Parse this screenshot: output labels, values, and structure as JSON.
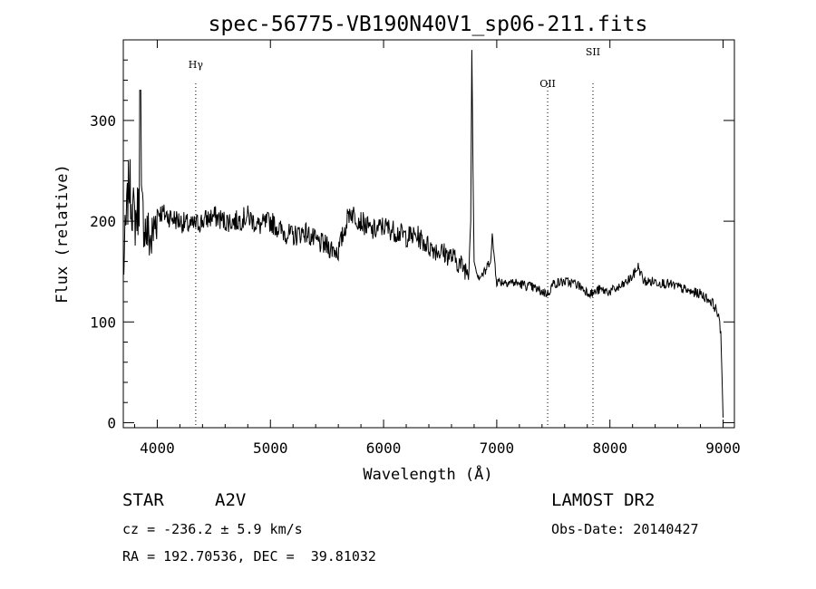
{
  "chart_data": {
    "type": "line",
    "title": "spec-56775-VB190N40V1_sp06-211.fits",
    "xlabel": "Wavelength (Å)",
    "ylabel": "Flux (relative)",
    "xlim": [
      3700,
      9100
    ],
    "ylim": [
      -5,
      380
    ],
    "xticks": [
      4000,
      5000,
      6000,
      7000,
      8000,
      9000
    ],
    "yticks": [
      0,
      100,
      200,
      300
    ],
    "grid": false,
    "line_color": "#000000",
    "reference_lines": [
      {
        "label": "Hγ",
        "x": 4340
      },
      {
        "label": "OII",
        "x": 7450
      },
      {
        "label": "SII",
        "x": 7850
      }
    ],
    "series": [
      {
        "x": [
          3700,
          3750,
          3800,
          3850,
          3900,
          3950,
          4000,
          4100,
          4200,
          4300,
          4400,
          4500,
          4600,
          4700,
          4800,
          4900,
          5000,
          5100,
          5200,
          5300,
          5400,
          5500,
          5600,
          5700,
          5800,
          5900,
          6000,
          6100,
          6200,
          6300,
          6400,
          6500,
          6600,
          6700,
          6750,
          6770,
          6780,
          6790,
          6800,
          6820,
          6850,
          6900,
          6950,
          6960,
          7000,
          7100,
          7200,
          7300,
          7400,
          7450,
          7500,
          7600,
          7700,
          7800,
          7850,
          7900,
          8000,
          8100,
          8200,
          8250,
          8300,
          8400,
          8500,
          8600,
          8700,
          8800,
          8900,
          8950,
          8980,
          9000
        ],
        "y": [
          150,
          240,
          200,
          220,
          190,
          180,
          210,
          205,
          200,
          195,
          200,
          205,
          200,
          200,
          205,
          195,
          200,
          190,
          185,
          190,
          180,
          175,
          170,
          210,
          200,
          190,
          195,
          190,
          185,
          185,
          175,
          170,
          165,
          155,
          150,
          200,
          370,
          250,
          160,
          150,
          145,
          150,
          165,
          185,
          140,
          140,
          138,
          135,
          130,
          128,
          138,
          140,
          138,
          130,
          128,
          132,
          130,
          135,
          145,
          155,
          140,
          140,
          138,
          135,
          130,
          128,
          120,
          110,
          90,
          5
        ]
      }
    ]
  },
  "info": {
    "object_class": "STAR",
    "subclass": "A2V",
    "survey": "LAMOST DR2",
    "redshift": "cz = -236.2 ± 5.9 km/s",
    "obs_date": "Obs-Date: 20140427",
    "coords": "RA = 192.70536, DEC =  39.81032"
  }
}
